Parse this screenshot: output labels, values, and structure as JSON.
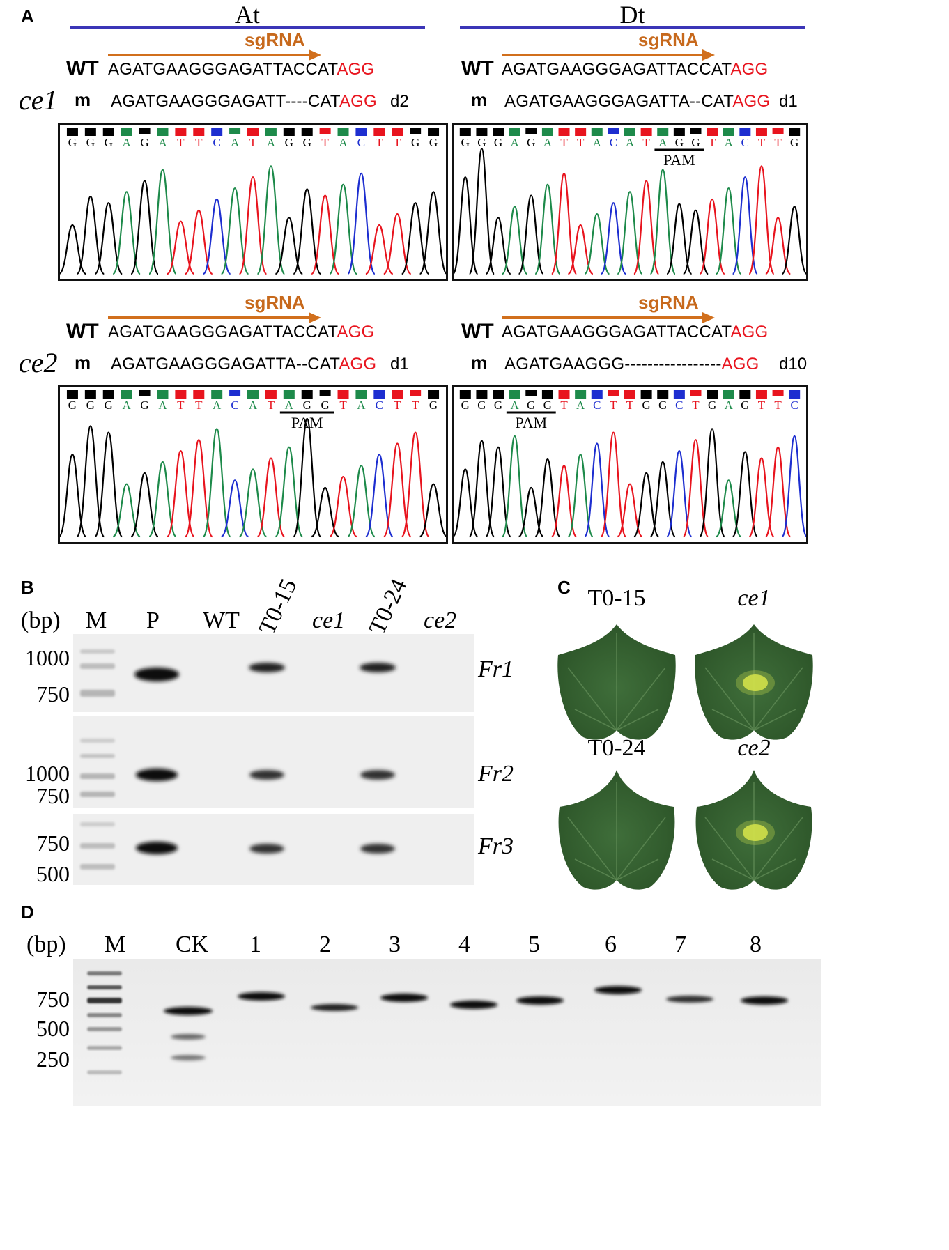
{
  "panels": {
    "A": "A",
    "B": "B",
    "C": "C",
    "D": "D"
  },
  "panelA": {
    "genomes": [
      "At",
      "Dt"
    ],
    "sgrna_label": "sgRNA",
    "wt_label": "WT",
    "m_label": "m",
    "pam_label": "PAM",
    "blocks": [
      {
        "line": "ce1",
        "wt_seq": "AGATGAAGGGAGATTACCAT",
        "wt_pam": "AGG",
        "m_seq": "AGATGAAGGGAGATT----CAT",
        "m_pam": "AGG",
        "deletion": "d2",
        "bases": "GGGAGATTCATAGGTACTTGG",
        "colors": [
          "#000000",
          "#000000",
          "#000000",
          "#1d8a4a",
          "#000000",
          "#1d8a4a",
          "#e8141e",
          "#e8141e",
          "#1d2ed0",
          "#1d8a4a",
          "#e8141e",
          "#1d8a4a",
          "#000000",
          "#000000",
          "#e8141e",
          "#1d8a4a",
          "#1d2ed0",
          "#e8141e",
          "#e8141e",
          "#000000",
          "#000000"
        ]
      },
      {
        "line": "",
        "wt_seq": "AGATGAAGGGAGATTACCAT",
        "wt_pam": "AGG",
        "m_seq": "AGATGAAGGGAGATTA--CAT",
        "m_pam": "AGG",
        "deletion": "d1",
        "bases": "GGGAGATTACATAGGTACTTG",
        "colors": [
          "#000000",
          "#000000",
          "#000000",
          "#1d8a4a",
          "#000000",
          "#1d8a4a",
          "#e8141e",
          "#e8141e",
          "#1d8a4a",
          "#1d2ed0",
          "#1d8a4a",
          "#e8141e",
          "#1d8a4a",
          "#000000",
          "#000000",
          "#e8141e",
          "#1d8a4a",
          "#1d2ed0",
          "#e8141e",
          "#e8141e",
          "#000000"
        ]
      },
      {
        "line": "ce2",
        "wt_seq": "AGATGAAGGGAGATTACCAT",
        "wt_pam": "AGG",
        "m_seq": "AGATGAAGGGAGATTA--CAT",
        "m_pam": "AGG",
        "deletion": "d1",
        "bases": "GGGAGATTACATAGGTACTTG",
        "colors": [
          "#000000",
          "#000000",
          "#000000",
          "#1d8a4a",
          "#000000",
          "#1d8a4a",
          "#e8141e",
          "#e8141e",
          "#1d8a4a",
          "#1d2ed0",
          "#1d8a4a",
          "#e8141e",
          "#1d8a4a",
          "#000000",
          "#000000",
          "#e8141e",
          "#1d8a4a",
          "#1d2ed0",
          "#e8141e",
          "#e8141e",
          "#000000"
        ]
      },
      {
        "line": "",
        "wt_seq": "AGATGAAGGGAGATTACCAT",
        "wt_pam": "AGG",
        "m_seq": "AGATGAAGGG-----------------",
        "m_pam": "AGG",
        "deletion": "d10",
        "bases": "GGGAGGTACTTGGCTGAGTTC",
        "colors": [
          "#000000",
          "#000000",
          "#000000",
          "#1d8a4a",
          "#000000",
          "#000000",
          "#e8141e",
          "#1d8a4a",
          "#1d2ed0",
          "#e8141e",
          "#e8141e",
          "#000000",
          "#000000",
          "#1d2ed0",
          "#e8141e",
          "#000000",
          "#1d8a4a",
          "#000000",
          "#e8141e",
          "#e8141e",
          "#1d2ed0"
        ]
      }
    ]
  },
  "panelB": {
    "bp_label": "(bp)",
    "lanes": [
      {
        "label": "M",
        "italic": false,
        "rotated": false
      },
      {
        "label": "P",
        "italic": false,
        "rotated": false
      },
      {
        "label": "WT",
        "italic": false,
        "rotated": false
      },
      {
        "label": "T0-15",
        "italic": false,
        "rotated": true
      },
      {
        "label": "ce1",
        "italic": true,
        "rotated": false
      },
      {
        "label": "T0-24",
        "italic": false,
        "rotated": true
      },
      {
        "label": "ce2",
        "italic": true,
        "rotated": false
      }
    ],
    "gels": [
      {
        "fragment": "Fr1",
        "sizes": [
          "1000",
          "750"
        ]
      },
      {
        "fragment": "Fr2",
        "sizes": [
          "1000",
          "750"
        ]
      },
      {
        "fragment": "Fr3",
        "sizes": [
          "750",
          "500"
        ]
      }
    ]
  },
  "panelC": {
    "leaves": [
      {
        "label": "T0-15",
        "italic": false,
        "spot": false
      },
      {
        "label": "ce1",
        "italic": true,
        "spot": true
      },
      {
        "label": "T0-24",
        "italic": false,
        "spot": false
      },
      {
        "label": "ce2",
        "italic": true,
        "spot": true
      }
    ]
  },
  "panelD": {
    "bp_label": "(bp)",
    "lanes": [
      "M",
      "CK",
      "1",
      "2",
      "3",
      "4",
      "5",
      "6",
      "7",
      "8"
    ],
    "sizes": [
      "750",
      "500",
      "250"
    ]
  }
}
